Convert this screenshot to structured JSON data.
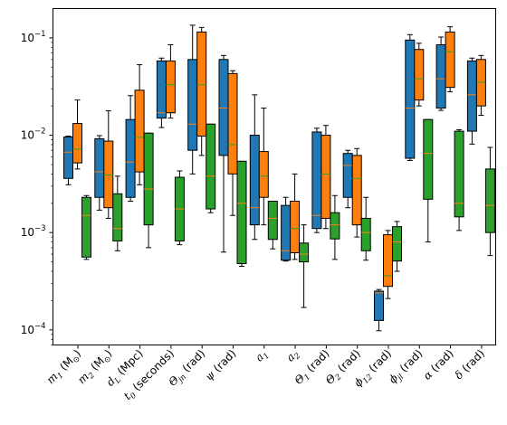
{
  "chart_data": {
    "type": "box",
    "title": "",
    "xlabel": "",
    "ylabel": "",
    "yscale": "log",
    "ylim": [
      7e-05,
      0.2
    ],
    "y_ticks": [
      {
        "value": 0.0001,
        "base": "10",
        "exp": "−4"
      },
      {
        "value": 0.001,
        "base": "10",
        "exp": "−3"
      },
      {
        "value": 0.01,
        "base": "10",
        "exp": "−2"
      },
      {
        "value": 0.1,
        "base": "10",
        "exp": "−1"
      }
    ],
    "categories": [
      {
        "main": "m",
        "sub": "1",
        "unit": " (M",
        "unitsub": "⊙",
        "tail": ")"
      },
      {
        "main": "m",
        "sub": "2",
        "unit": " (M",
        "unitsub": "⊙",
        "tail": ")"
      },
      {
        "main": "d",
        "sub": "L",
        "unit": " (Mpc)",
        "unitsub": "",
        "tail": ""
      },
      {
        "main": "t",
        "sub": "0",
        "unit": " (seconds)",
        "unitsub": "",
        "tail": ""
      },
      {
        "main": "Θ",
        "sub": "jn",
        "unit": " (rad)",
        "unitsub": "",
        "tail": ""
      },
      {
        "main": "ψ",
        "sub": "",
        "unit": " (rad)",
        "unitsub": "",
        "tail": ""
      },
      {
        "main": "a",
        "sub": "1",
        "unit": "",
        "unitsub": "",
        "tail": ""
      },
      {
        "main": "a",
        "sub": "2",
        "unit": "",
        "unitsub": "",
        "tail": ""
      },
      {
        "main": "Θ",
        "sub": "1",
        "unit": " (rad)",
        "unitsub": "",
        "tail": ""
      },
      {
        "main": "Θ",
        "sub": "2",
        "unit": " (rad)",
        "unitsub": "",
        "tail": ""
      },
      {
        "main": "ϕ",
        "sub": "12",
        "unit": " (rad)",
        "unitsub": "",
        "tail": ""
      },
      {
        "main": "ϕ",
        "sub": "jl",
        "unit": " (rad)",
        "unitsub": "",
        "tail": ""
      },
      {
        "main": "α",
        "sub": "",
        "unit": " (rad)",
        "unitsub": "",
        "tail": ""
      },
      {
        "main": "δ",
        "sub": "",
        "unit": " (rad)",
        "unitsub": "",
        "tail": ""
      }
    ],
    "series": [
      {
        "color": "#1f77b4",
        "boxes": [
          {
            "wlo": 0.0031,
            "q1": 0.0036,
            "med": 0.0067,
            "q3": 0.0096,
            "whi": 0.0098
          },
          {
            "wlo": 0.0017,
            "q1": 0.0023,
            "med": 0.0042,
            "q3": 0.0092,
            "whi": 0.0099
          },
          {
            "wlo": 0.0021,
            "q1": 0.0023,
            "med": 0.0053,
            "q3": 0.0145,
            "whi": 0.0255
          },
          {
            "wlo": 0.012,
            "q1": 0.015,
            "med": 0.017,
            "q3": 0.058,
            "whi": 0.062
          },
          {
            "wlo": 0.004,
            "q1": 0.007,
            "med": 0.013,
            "q3": 0.06,
            "whi": 0.135
          },
          {
            "wlo": 0.00063,
            "q1": 0.0062,
            "med": 0.019,
            "q3": 0.06,
            "whi": 0.066
          },
          {
            "wlo": 0.00085,
            "q1": 0.0012,
            "med": 0.0018,
            "q3": 0.01,
            "whi": 0.026
          },
          {
            "wlo": 0.00051,
            "q1": 0.00052,
            "med": 0.00065,
            "q3": 0.0019,
            "whi": 0.0023
          },
          {
            "wlo": 0.001,
            "q1": 0.0011,
            "med": 0.0015,
            "q3": 0.0108,
            "whi": 0.0118
          },
          {
            "wlo": 0.0018,
            "q1": 0.0023,
            "med": 0.0049,
            "q3": 0.0065,
            "whi": 0.007
          },
          {
            "wlo": 9.8e-05,
            "q1": 0.000125,
            "med": 0.00024,
            "q3": 0.00025,
            "whi": 0.00026
          },
          {
            "wlo": 0.0055,
            "q1": 0.0058,
            "med": 0.019,
            "q3": 0.095,
            "whi": 0.108
          },
          {
            "wlo": 0.018,
            "q1": 0.019,
            "med": 0.038,
            "q3": 0.085,
            "whi": 0.102
          },
          {
            "wlo": 0.0081,
            "q1": 0.011,
            "med": 0.026,
            "q3": 0.058,
            "whi": 0.062
          }
        ]
      },
      {
        "color": "#ff7f0e",
        "boxes": [
          {
            "wlo": 0.0045,
            "q1": 0.0052,
            "med": 0.0072,
            "q3": 0.0132,
            "whi": 0.023
          },
          {
            "wlo": 0.0014,
            "q1": 0.0018,
            "med": 0.0039,
            "q3": 0.0087,
            "whi": 0.0178
          },
          {
            "wlo": 0.0031,
            "q1": 0.0042,
            "med": 0.0095,
            "q3": 0.029,
            "whi": 0.053
          },
          {
            "wlo": 0.015,
            "q1": 0.017,
            "med": 0.033,
            "q3": 0.058,
            "whi": 0.085
          },
          {
            "wlo": 0.0062,
            "q1": 0.0098,
            "med": 0.033,
            "q3": 0.115,
            "whi": 0.128
          },
          {
            "wlo": 0.0015,
            "q1": 0.004,
            "med": 0.008,
            "q3": 0.043,
            "whi": 0.046
          },
          {
            "wlo": 0.0012,
            "q1": 0.0023,
            "med": 0.0038,
            "q3": 0.0068,
            "whi": 0.019
          },
          {
            "wlo": 0.00053,
            "q1": 0.00062,
            "med": 0.0011,
            "q3": 0.0021,
            "whi": 0.004
          },
          {
            "wlo": 0.0011,
            "q1": 0.0014,
            "med": 0.004,
            "q3": 0.01,
            "whi": 0.0126
          },
          {
            "wlo": 0.0009,
            "q1": 0.0012,
            "med": 0.0036,
            "q3": 0.0062,
            "whi": 0.0073
          },
          {
            "wlo": 0.00021,
            "q1": 0.00028,
            "med": 0.00036,
            "q3": 0.00095,
            "whi": 0.00105
          },
          {
            "wlo": 0.02,
            "q1": 0.023,
            "med": 0.038,
            "q3": 0.076,
            "whi": 0.088
          },
          {
            "wlo": 0.028,
            "q1": 0.031,
            "med": 0.072,
            "q3": 0.115,
            "whi": 0.13
          },
          {
            "wlo": 0.016,
            "q1": 0.02,
            "med": 0.035,
            "q3": 0.06,
            "whi": 0.066
          }
        ]
      },
      {
        "color": "#2ca02c",
        "boxes": [
          {
            "wlo": 0.00053,
            "q1": 0.00056,
            "med": 0.0015,
            "q3": 0.0023,
            "whi": 0.0024
          },
          {
            "wlo": 0.00065,
            "q1": 0.00082,
            "med": 0.0011,
            "q3": 0.0025,
            "whi": 0.0038
          },
          {
            "wlo": 0.0007,
            "q1": 0.0012,
            "med": 0.0028,
            "q3": 0.0105,
            "whi": 0.0105
          },
          {
            "wlo": 0.00075,
            "q1": 0.00082,
            "med": 0.00175,
            "q3": 0.0037,
            "whi": 0.0043
          },
          {
            "wlo": 0.0016,
            "q1": 0.00175,
            "med": 0.0038,
            "q3": 0.013,
            "whi": 0.013
          },
          {
            "wlo": 0.00045,
            "q1": 0.00048,
            "med": 0.002,
            "q3": 0.0054,
            "whi": 0.0054
          },
          {
            "wlo": 0.00068,
            "q1": 0.00085,
            "med": 0.0014,
            "q3": 0.0021,
            "whi": 0.0021
          },
          {
            "wlo": 0.00017,
            "q1": 0.0005,
            "med": 0.0006,
            "q3": 0.00078,
            "whi": 0.0012
          },
          {
            "wlo": 0.00053,
            "q1": 0.00086,
            "med": 0.0012,
            "q3": 0.0016,
            "whi": 0.0024
          },
          {
            "wlo": 0.00052,
            "q1": 0.00065,
            "med": 0.001,
            "q3": 0.0014,
            "whi": 0.0023
          },
          {
            "wlo": 0.0004,
            "q1": 0.00051,
            "med": 0.0008,
            "q3": 0.00115,
            "whi": 0.0013
          },
          {
            "wlo": 0.0008,
            "q1": 0.0022,
            "med": 0.0065,
            "q3": 0.0145,
            "whi": 0.0145
          },
          {
            "wlo": 0.00105,
            "q1": 0.00145,
            "med": 0.002,
            "q3": 0.011,
            "whi": 0.0114
          },
          {
            "wlo": 0.00058,
            "q1": 0.001,
            "med": 0.0019,
            "q3": 0.0045,
            "whi": 0.0075
          }
        ]
      }
    ]
  }
}
